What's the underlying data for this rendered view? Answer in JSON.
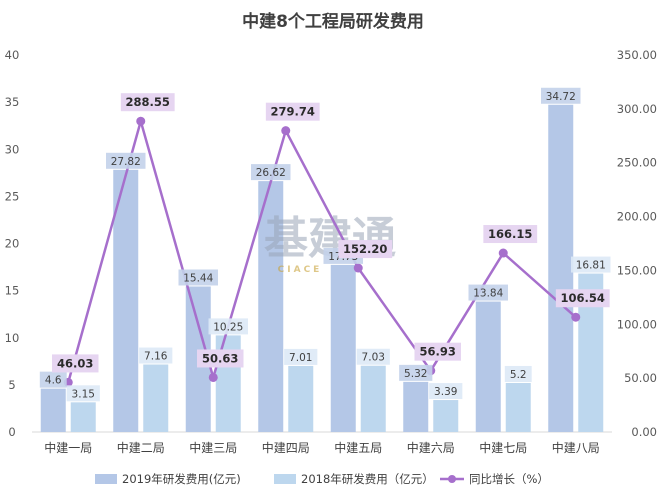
{
  "chart_data": {
    "type": "bar",
    "title": "中建8个工程局研发费用",
    "categories": [
      "中建一局",
      "中建二局",
      "中建三局",
      "中建四局",
      "中建五局",
      "中建六局",
      "中建七局",
      "中建八局"
    ],
    "series": [
      {
        "name": "2019年研发费用(亿元)",
        "kind": "bar",
        "axis": "left",
        "color": "#b4c7e7",
        "values": [
          4.6,
          27.82,
          15.44,
          26.62,
          17.73,
          5.32,
          13.84,
          34.72
        ],
        "labels": [
          "4.6",
          "27.82",
          "15.44",
          "26.62",
          "17.73",
          "5.32",
          "13.84",
          "34.72"
        ]
      },
      {
        "name": "2018年研发费用（亿元）",
        "kind": "bar",
        "axis": "left",
        "color": "#bdd7ee",
        "values": [
          3.15,
          7.16,
          10.25,
          7.01,
          7.03,
          3.39,
          5.2,
          16.81
        ],
        "labels": [
          "3.15",
          "7.16",
          "10.25",
          "7.01",
          "7.03",
          "3.39",
          "5.2",
          "16.81"
        ]
      },
      {
        "name": "同比增长（%）",
        "kind": "line",
        "axis": "right",
        "color": "#a66fcc",
        "values": [
          46.03,
          288.55,
          50.63,
          279.74,
          152.2,
          56.93,
          166.15,
          106.54
        ],
        "labels": [
          "46.03",
          "288.55",
          "50.63",
          "279.74",
          "152.20",
          "56.93",
          "166.15",
          "106.54"
        ]
      }
    ],
    "y_left": {
      "ylim": [
        0,
        40
      ],
      "ticks": [
        "0",
        "5",
        "10",
        "15",
        "20",
        "25",
        "30",
        "35",
        "40"
      ]
    },
    "y_right": {
      "ylim": [
        0,
        350
      ],
      "ticks": [
        "0.00",
        "50.00",
        "100.00",
        "150.00",
        "200.00",
        "250.00",
        "300.00",
        "350.00"
      ]
    },
    "legend_position": "bottom",
    "grid": false
  },
  "watermark": {
    "text": "基建通",
    "subtext": "CIACE"
  }
}
